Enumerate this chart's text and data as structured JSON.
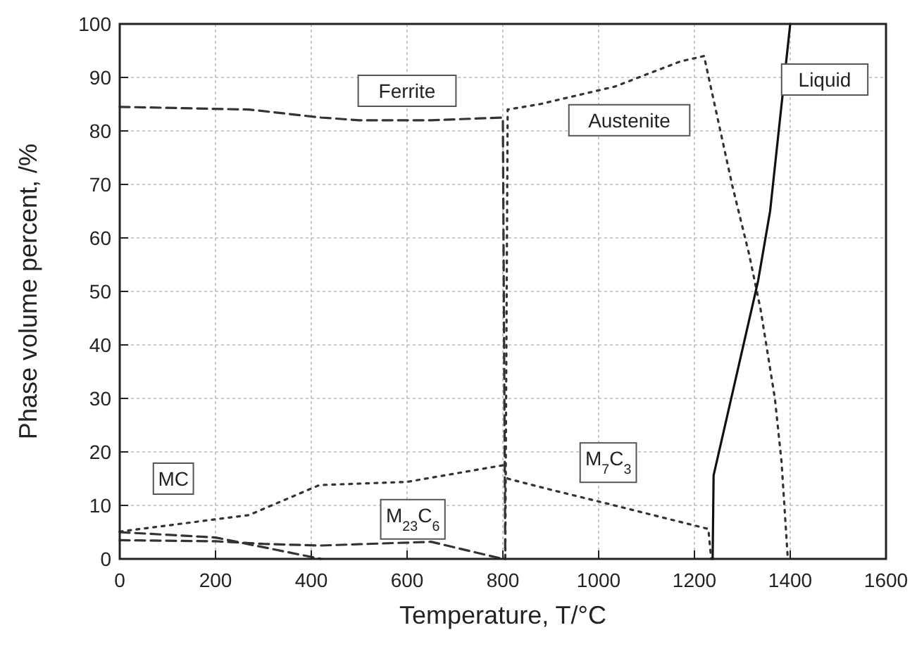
{
  "chart_data": {
    "type": "line",
    "xlabel": "Temperature, T/°C",
    "ylabel": "Phase volume percent, /%",
    "xlim": [
      0,
      1600
    ],
    "xticks": [
      0,
      200,
      400,
      600,
      800,
      1000,
      1200,
      1400,
      1600
    ],
    "ylim": [
      0,
      100
    ],
    "yticks": [
      0,
      10,
      20,
      30,
      40,
      50,
      60,
      70,
      80,
      90,
      100
    ],
    "grid": true,
    "marker": "none",
    "series": [
      {
        "name": "Ferrite",
        "color": "#333333",
        "line_style": "dashed",
        "x": [
          0,
          270,
          420,
          500,
          650,
          800,
          805
        ],
        "values": [
          84.5,
          84,
          82.5,
          82,
          82,
          82.5,
          0
        ]
      },
      {
        "name": "Austenite",
        "color": "#333333",
        "line_style": "dotted",
        "x": [
          805,
          810,
          877,
          1034,
          1171,
          1220,
          1279,
          1314,
          1338,
          1368,
          1382,
          1395
        ],
        "values": [
          0,
          84,
          85,
          88.3,
          93,
          94,
          69.8,
          57,
          46.7,
          30,
          18,
          0
        ]
      },
      {
        "name": "Liquid",
        "color": "#111111",
        "line_style": "solid",
        "x": [
          1238,
          1240,
          1333,
          1358,
          1400
        ],
        "values": [
          0,
          15.6,
          52,
          65,
          100
        ]
      },
      {
        "color": "#333333",
        "line_style": "dotted",
        "x": [
          0,
          200,
          270,
          417,
          600,
          800,
          810,
          897,
          1015,
          1229,
          1235
        ],
        "values": [
          5.1,
          7.4,
          8.2,
          13.8,
          14.4,
          17.5,
          15,
          13,
          10.4,
          5.6,
          0
        ]
      },
      {
        "name": "M$_{23}$C$_{6}$",
        "color": "#333333",
        "line_style": "dashed",
        "x": [
          0,
          200,
          300,
          420,
          650,
          800
        ],
        "values": [
          3.5,
          3.3,
          2.8,
          2.5,
          3.2,
          0
        ]
      },
      {
        "color": "#333333",
        "line_style": "dashed",
        "x": [
          0,
          200,
          420
        ],
        "values": [
          5,
          4,
          0
        ]
      }
    ],
    "annotations": [
      {
        "text": "MC",
        "x": 112,
        "y": 15
      },
      {
        "text": "M$_{7}$C$_{3}$",
        "x": 1020,
        "y": 18
      }
    ]
  }
}
